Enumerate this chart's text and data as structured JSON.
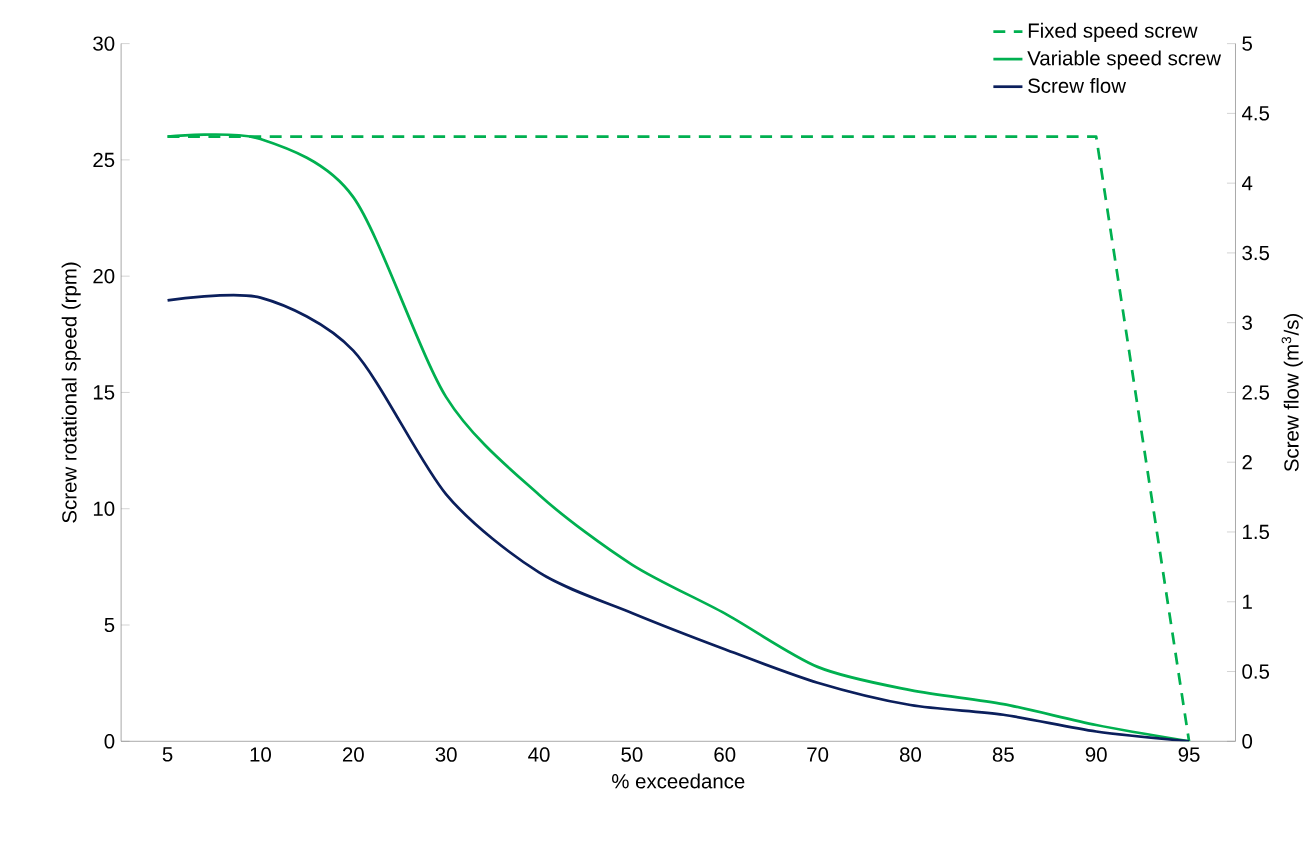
{
  "chart_data": {
    "type": "line",
    "xlabel": "% exceedance",
    "ylabel": "Screw rotational speed (rpm)",
    "y2label": "Screw flow (m$^{3}$/s)",
    "categories": [
      "5",
      "10",
      "20",
      "30",
      "40",
      "50",
      "60",
      "70",
      "80",
      "85",
      "90",
      "95"
    ],
    "series": [
      {
        "name": "Fixed speed screw",
        "color": "#00b050",
        "line_style": "dashed",
        "values": [
          26,
          26,
          26,
          26,
          26,
          26,
          26,
          26,
          26,
          26,
          26,
          0
        ]
      },
      {
        "name": "Variable speed screw",
        "color": "#00b050",
        "line_style": "solid",
        "values": [
          26,
          25.9,
          23.4,
          14.8,
          10.6,
          7.6,
          5.5,
          3.2,
          2.2,
          1.6,
          0.7,
          0
        ]
      },
      {
        "name": "Screw flow",
        "color": "#0b1f5c",
        "line_style": "solid",
        "axis": "y2",
        "values": [
          3.16,
          3.18,
          2.8,
          1.77,
          1.21,
          0.92,
          0.66,
          0.42,
          0.26,
          0.19,
          0.07,
          0
        ]
      }
    ],
    "ylim": [
      0,
      30
    ],
    "yticks": [
      0,
      5,
      10,
      15,
      20,
      25,
      30
    ],
    "y2lim": [
      0,
      5
    ],
    "y2ticks": [
      0,
      0.5,
      1,
      1.5,
      2,
      2.5,
      3,
      3.5,
      4,
      4.5,
      5
    ],
    "grid": false,
    "legend": "top right",
    "marker": "none"
  }
}
